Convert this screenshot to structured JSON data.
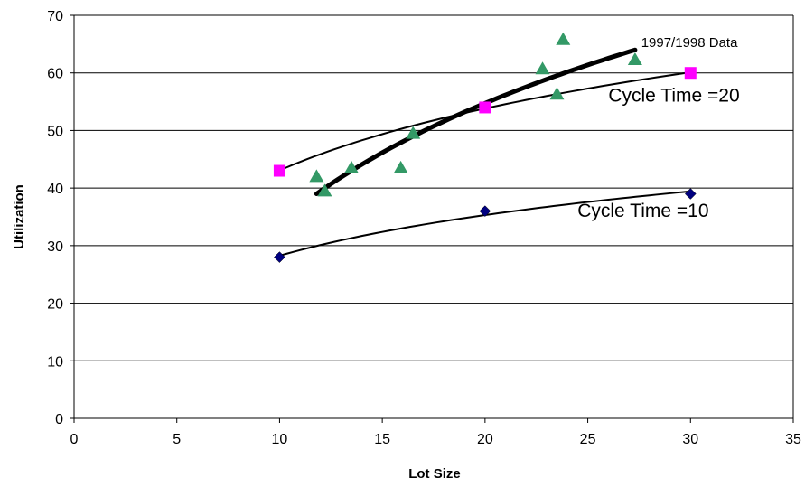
{
  "chart_data": {
    "type": "scatter",
    "xlabel": "Lot Size",
    "ylabel": "Utilization",
    "xlim": [
      0,
      35
    ],
    "ylim": [
      0,
      70
    ],
    "xticks": [
      0,
      5,
      10,
      15,
      20,
      25,
      30,
      35
    ],
    "yticks": [
      0,
      10,
      20,
      30,
      40,
      50,
      60,
      70
    ],
    "grid": "horizontal",
    "series": [
      {
        "marker": "diamond",
        "color": "#000080",
        "points": [
          [
            10,
            28
          ],
          [
            20,
            36
          ],
          [
            30,
            39
          ]
        ],
        "trendline": {
          "type": "log",
          "from": 10,
          "to": 30,
          "width": "thin"
        }
      },
      {
        "marker": "square",
        "color": "#ff00ff",
        "points": [
          [
            10,
            43
          ],
          [
            20,
            54
          ],
          [
            30,
            60
          ]
        ],
        "trendline": {
          "type": "log",
          "from": 10,
          "to": 30,
          "width": "thin"
        }
      },
      {
        "marker": "triangle",
        "color": "#339966",
        "points": [
          [
            11.8,
            42
          ],
          [
            12.2,
            39.5
          ],
          [
            13.5,
            43.5
          ],
          [
            15.9,
            43.5
          ],
          [
            16.5,
            49.5
          ],
          [
            22.8,
            60.7
          ],
          [
            23.5,
            56.3
          ],
          [
            23.8,
            65.8
          ],
          [
            27.3,
            62.3
          ]
        ],
        "trendline": {
          "type": "log",
          "from": 11.8,
          "to": 27.3,
          "y_from": 39,
          "y_to": 64,
          "width": "thick"
        }
      }
    ],
    "annotations": [
      {
        "text": "1997/1998 Data",
        "x": 27.6,
        "y": 64.5,
        "size": "small"
      },
      {
        "text": "Cycle Time =20",
        "x": 26,
        "y": 55,
        "size": "large"
      },
      {
        "text": "Cycle Time =10",
        "x": 24.5,
        "y": 35,
        "size": "large"
      }
    ]
  }
}
